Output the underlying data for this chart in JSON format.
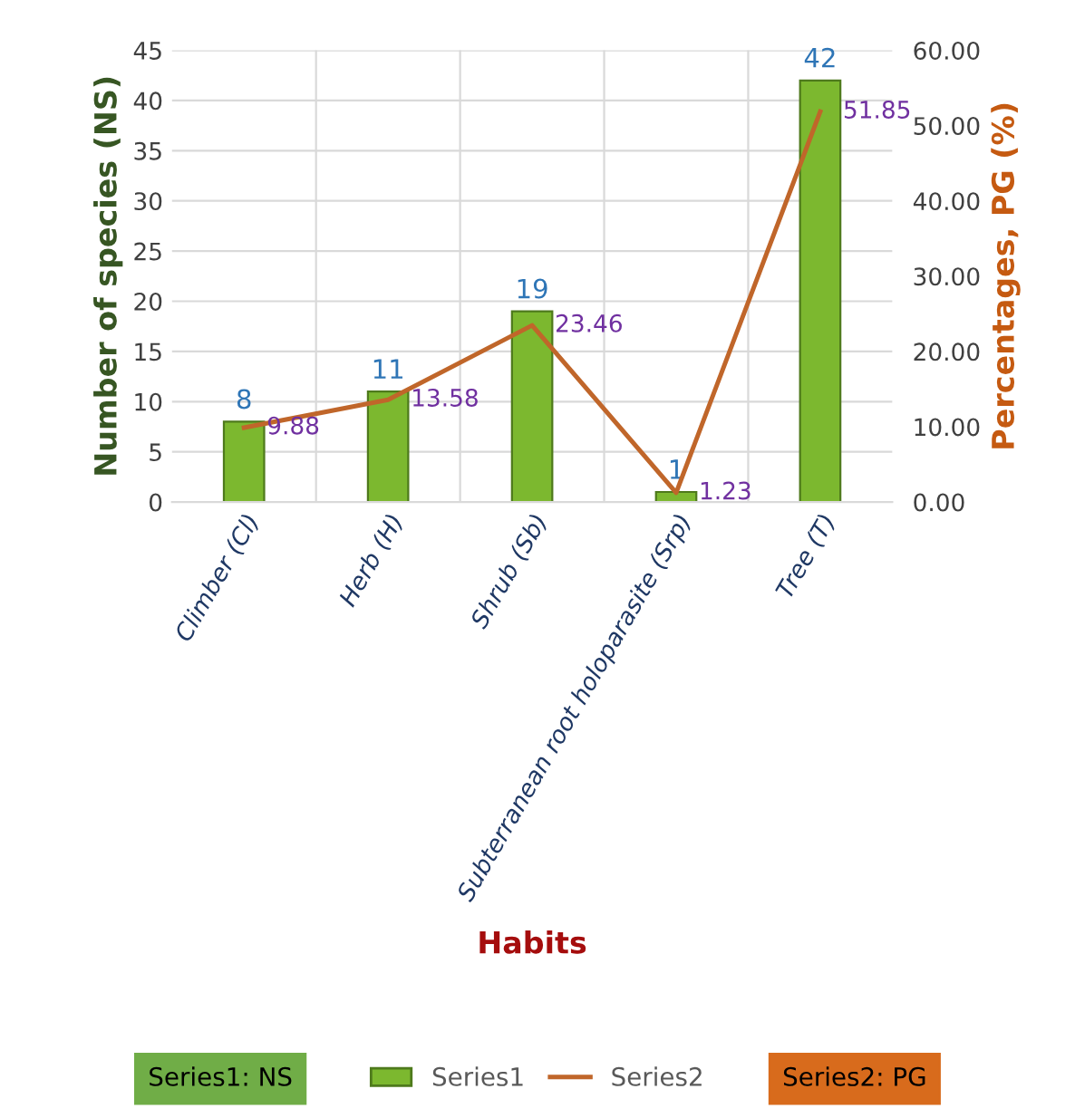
{
  "chart_data": {
    "type": "bar",
    "categories": [
      "Climber (Cl)",
      "Herb (H)",
      "Shrub (Sb)",
      "Subterranean root holoparasite (Srp)",
      "Tree (T)"
    ],
    "xlabel": "Habits",
    "ylabel": "Number of species (NS)",
    "y2label": "Percentages, PG (%)",
    "series": [
      {
        "name": "Series1",
        "color": "#7cb82f",
        "values": [
          8,
          11,
          19,
          1,
          42
        ]
      },
      {
        "name": "Series2",
        "type": "line",
        "axis": "y2",
        "color": "#c0662a",
        "values": [
          9.88,
          13.58,
          23.46,
          1.23,
          51.85
        ]
      }
    ],
    "ylim": [
      0,
      45
    ],
    "yticks": [
      0,
      5,
      10,
      15,
      20,
      25,
      30,
      35,
      40,
      45
    ],
    "y2lim": [
      0,
      60
    ],
    "y2ticks": [
      {
        "value": 0,
        "label": "0.00"
      },
      {
        "value": 10,
        "label": "10.00"
      },
      {
        "value": 20,
        "label": "20.00"
      },
      {
        "value": 30,
        "label": "30.00"
      },
      {
        "value": 40,
        "label": "40.00"
      },
      {
        "value": 50,
        "label": "50.00"
      },
      {
        "value": 60,
        "label": "60.00"
      }
    ],
    "data_labels": true,
    "grid": true,
    "legend": "bottom",
    "marker": "none",
    "line_style": "solid",
    "annotations": [
      "Series1: NS",
      "Series2: PG"
    ]
  }
}
